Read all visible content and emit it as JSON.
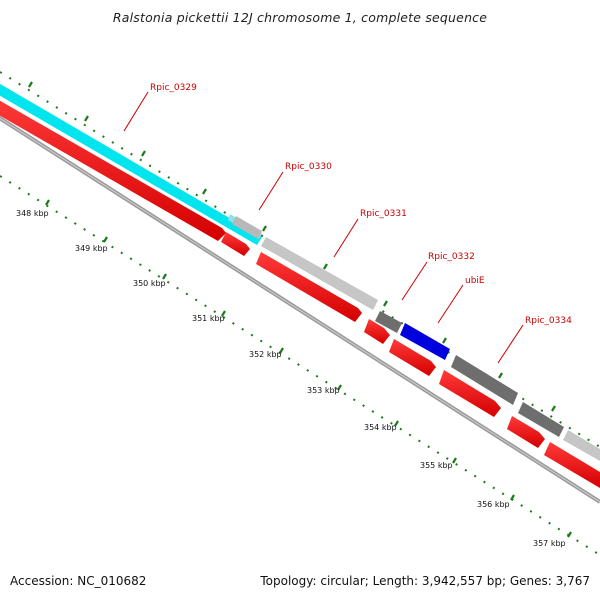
{
  "title": "Ralstonia pickettii 12J chromosome 1, complete sequence",
  "footer": {
    "accession": "Accession: NC_010682",
    "summary": "Topology: circular; Length: 3,942,557 bp; Genes: 3,767"
  },
  "colors": {
    "backbone": "#8c8c8c",
    "cds_forward": "#ff0000",
    "cds_feature_cyan": "#00e5ee",
    "gene_light": "#c8c8c8",
    "gene_dark": "#6e6e6e",
    "gene_blue": "#0000dd",
    "tick": "#1a7a1a",
    "label": "#cc0000"
  },
  "scale_labels": [
    "348 kbp",
    "349 kbp",
    "350 kbp",
    "351 kbp",
    "352 kbp",
    "353 kbp",
    "354 kbp",
    "355 kbp",
    "356 kbp",
    "357 kbp"
  ],
  "gene_labels": [
    "Rpic_0329",
    "Rpic_0330",
    "Rpic_0331",
    "Rpic_0332",
    "ubiE",
    "Rpic_0334"
  ]
}
